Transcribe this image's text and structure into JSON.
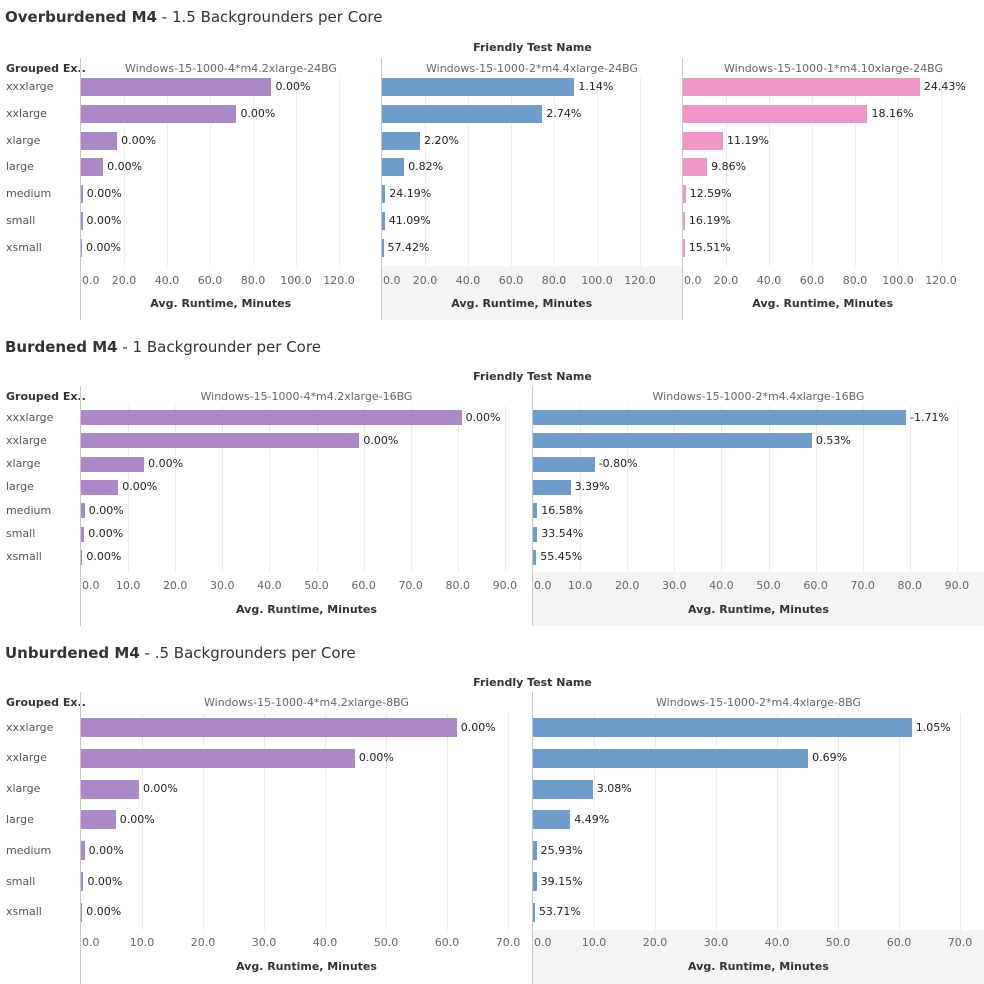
{
  "colors": {
    "purple": "#ab88c6",
    "blue": "#6f9dcb",
    "pink": "#ee97c9"
  },
  "chart_data": [
    {
      "type": "bar",
      "title_bold": "Overburdened M4",
      "title_rest": " - 1.5 Backgrounders per Core",
      "column_group_label": "Friendly Test Name",
      "row_header": "Grouped Ex..",
      "categories": [
        "xxxlarge",
        "xxlarge",
        "xlarge",
        "large",
        "medium",
        "small",
        "xsmall"
      ],
      "xlabel": "Avg. Runtime, Minutes",
      "xlim": [
        0,
        130
      ],
      "ticks": [
        "0.0",
        "20.0",
        "40.0",
        "60.0",
        "80.0",
        "100.0",
        "120.0"
      ],
      "tick_values": [
        0,
        20,
        40,
        60,
        80,
        100,
        120
      ],
      "panels": [
        {
          "name": "Windows-15-1000-4*m4.2xlarge-24BG",
          "color": "purple",
          "values": [
            88.6,
            72.3,
            16.8,
            10.3,
            0.8,
            0.7,
            0.2
          ],
          "labels": [
            "0.00%",
            "0.00%",
            "0.00%",
            "0.00%",
            "0.00%",
            "0.00%",
            "0.00%"
          ]
        },
        {
          "name": "Windows-15-1000-2*m4.4xlarge-24BG",
          "color": "blue",
          "values": [
            89.5,
            74.6,
            17.7,
            10.3,
            1.5,
            1.3,
            0.7
          ],
          "labels": [
            "1.14%",
            "2.74%",
            "2.20%",
            "0.82%",
            "24.19%",
            "41.09%",
            "57.42%"
          ]
        },
        {
          "name": "Windows-15-1000-1*m4.10xlarge-24BG",
          "color": "pink",
          "values": [
            110.2,
            85.8,
            18.6,
            11.2,
            1.2,
            0.9,
            0.8
          ],
          "labels": [
            "24.43%",
            "18.16%",
            "11.19%",
            "9.86%",
            "12.59%",
            "16.19%",
            "15.51%"
          ]
        }
      ]
    },
    {
      "type": "bar",
      "title_bold": "Burdened M4",
      "title_rest": " - 1 Backgrounder per Core",
      "column_group_label": "Friendly Test Name",
      "row_header": "Grouped Ex..",
      "categories": [
        "xxxlarge",
        "xxlarge",
        "xlarge",
        "large",
        "medium",
        "small",
        "xsmall"
      ],
      "xlabel": "Avg. Runtime, Minutes",
      "xlim": [
        0,
        96
      ],
      "ticks": [
        "0.0",
        "10.0",
        "20.0",
        "30.0",
        "40.0",
        "50.0",
        "60.0",
        "70.0",
        "80.0",
        "90.0"
      ],
      "tick_values": [
        0,
        10,
        20,
        30,
        40,
        50,
        60,
        70,
        80,
        90
      ],
      "panels": [
        {
          "name": "Windows-15-1000-4*m4.2xlarge-16BG",
          "color": "purple",
          "values": [
            80.8,
            59.1,
            13.4,
            7.9,
            0.8,
            0.7,
            0.3
          ],
          "labels": [
            "0.00%",
            "0.00%",
            "0.00%",
            "0.00%",
            "0.00%",
            "0.00%",
            "0.00%"
          ]
        },
        {
          "name": "Windows-15-1000-2*m4.4xlarge-16BG",
          "color": "blue",
          "values": [
            79.2,
            59.2,
            13.1,
            8.0,
            0.9,
            0.9,
            0.7
          ],
          "labels": [
            "-1.71%",
            "0.53%",
            "-0.80%",
            "3.39%",
            "16.58%",
            "33.54%",
            "55.45%"
          ]
        }
      ]
    },
    {
      "type": "bar",
      "title_bold": "Unburdened M4",
      "title_rest": " - .5 Backgrounders per Core",
      "column_group_label": "Friendly Test Name",
      "row_header": "Grouped Ex..",
      "categories": [
        "xxxlarge",
        "xxlarge",
        "xlarge",
        "large",
        "medium",
        "small",
        "xsmall"
      ],
      "xlabel": "Avg. Runtime, Minutes",
      "xlim": [
        0,
        74
      ],
      "ticks": [
        "0.0",
        "10.0",
        "20.0",
        "30.0",
        "40.0",
        "50.0",
        "60.0",
        "70.0"
      ],
      "tick_values": [
        0,
        10,
        20,
        30,
        40,
        50,
        60,
        70
      ],
      "panels": [
        {
          "name": "Windows-15-1000-4*m4.2xlarge-8BG",
          "color": "purple",
          "values": [
            61.6,
            44.9,
            9.5,
            5.7,
            0.6,
            0.4,
            0.2
          ],
          "labels": [
            "0.00%",
            "0.00%",
            "0.00%",
            "0.00%",
            "0.00%",
            "0.00%",
            "0.00%"
          ]
        },
        {
          "name": "Windows-15-1000-2*m4.4xlarge-8BG",
          "color": "blue",
          "values": [
            62.1,
            45.1,
            9.8,
            6.1,
            0.6,
            0.6,
            0.3
          ],
          "labels": [
            "1.05%",
            "0.69%",
            "3.08%",
            "4.49%",
            "25.93%",
            "39.15%",
            "53.71%"
          ]
        }
      ]
    }
  ]
}
